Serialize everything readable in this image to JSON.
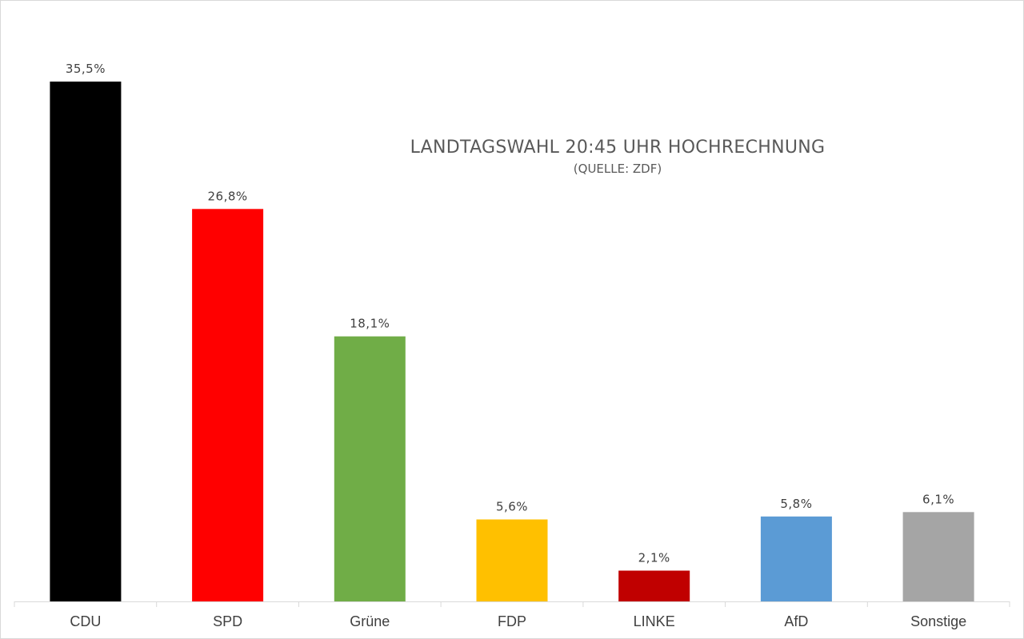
{
  "chart_data": {
    "type": "bar",
    "title": "LANDTAGSWAHL 20:45 UHR HOCHRECHNUNG",
    "subtitle": "(QUELLE: ZDF)",
    "xlabel": "",
    "ylabel": "",
    "ylim": [
      0,
      35.5
    ],
    "grid": false,
    "legend": "none",
    "categories": [
      "CDU",
      "SPD",
      "Grüne",
      "FDP",
      "LINKE",
      "AfD",
      "Sonstige"
    ],
    "values": [
      35.5,
      26.8,
      18.1,
      5.6,
      2.1,
      5.8,
      6.1
    ],
    "data_labels": [
      "35,5%",
      "26,8%",
      "18,1%",
      "5,6%",
      "2,1%",
      "5,8%",
      "6,1%"
    ],
    "colors": [
      "#000000",
      "#ff0000",
      "#70ad47",
      "#ffc000",
      "#c00000",
      "#5b9bd5",
      "#a5a5a5"
    ]
  }
}
